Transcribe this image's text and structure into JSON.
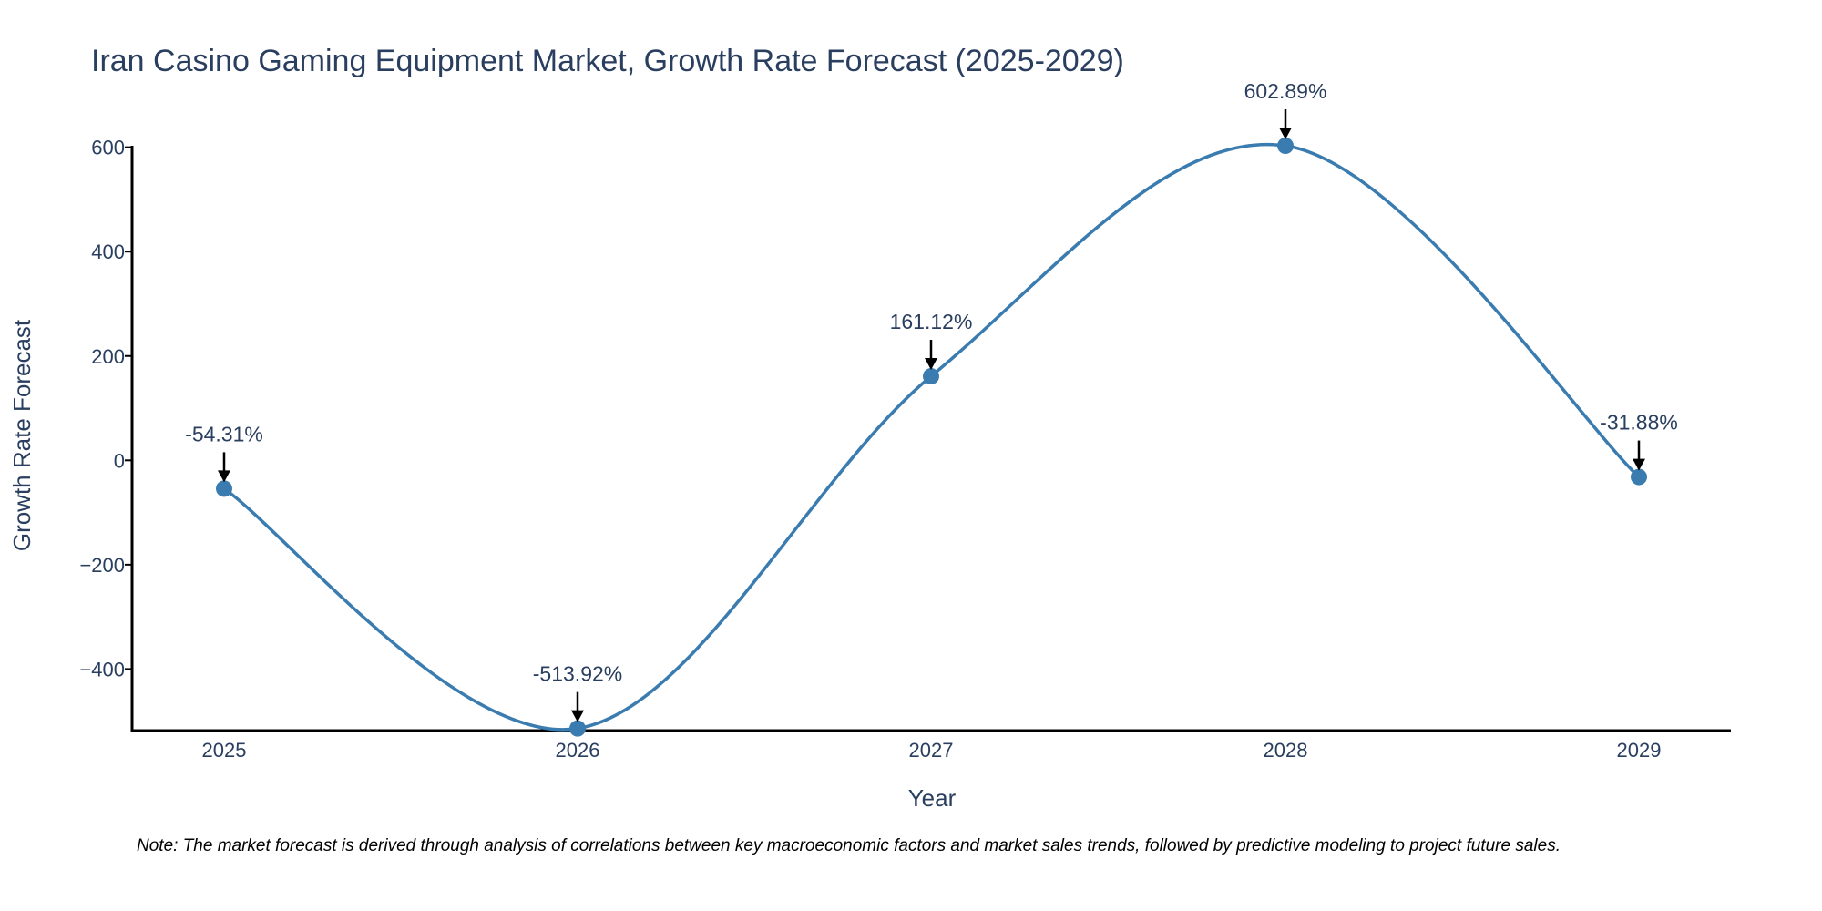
{
  "chart_data": {
    "type": "line",
    "title": "Iran Casino Gaming Equipment Market, Growth Rate Forecast (2025-2029)",
    "xlabel": "Year",
    "ylabel": "Growth Rate Forecast",
    "categories": [
      "2025",
      "2026",
      "2027",
      "2028",
      "2029"
    ],
    "series": [
      {
        "name": "Growth Rate Forecast",
        "values": [
          -54.31,
          -513.92,
          161.12,
          602.89,
          -31.88
        ]
      }
    ],
    "annotations": [
      "-54.31%",
      "-513.92%",
      "161.12%",
      "602.89%",
      "-31.88%"
    ],
    "yticks": [
      -400,
      -200,
      0,
      200,
      400,
      600
    ],
    "ytick_labels": [
      "−400",
      "−200",
      "0",
      "200",
      "400",
      "600"
    ],
    "ylim": [
      -518,
      602.89
    ],
    "line_shape": "spline",
    "grid": false,
    "colors": {
      "line": "#3a7cb0",
      "marker": "#3a7cb0",
      "axis": "#000000",
      "arrow": "#000000"
    }
  },
  "note": "Note: The market forecast is derived through analysis of correlations between key macroeconomic factors and market sales trends, followed by predictive modeling to project future sales."
}
